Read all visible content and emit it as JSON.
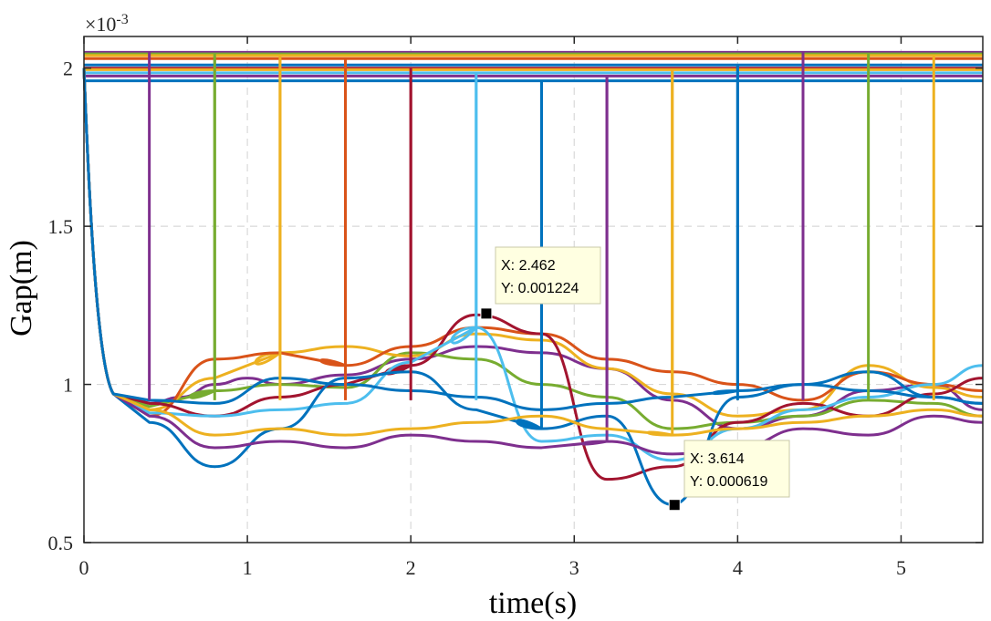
{
  "chart_data": {
    "type": "line",
    "xlabel": "time(s)",
    "ylabel": "Gap(m)",
    "xlim": [
      0,
      5.5
    ],
    "ylim": [
      0.5,
      2.1
    ],
    "y_multiplier_label": "×10",
    "y_multiplier_exponent": "-3",
    "xticks": [
      0,
      1,
      2,
      3,
      4,
      5
    ],
    "xtick_labels": [
      "0",
      "1",
      "2",
      "3",
      "4",
      "5"
    ],
    "yticks": [
      0.5,
      1,
      1.5,
      2
    ],
    "ytick_labels": [
      "0.5",
      "1",
      "1.5",
      "2"
    ],
    "grid": true,
    "legend": "none",
    "series_note_colors": [
      "#0072BD",
      "#D95319",
      "#EDB120",
      "#7E2F8E",
      "#77AC30",
      "#4DBEEE",
      "#A2142F"
    ],
    "series": [
      {
        "color": "#7E2F8E",
        "start": 0.4,
        "level": 2.05,
        "low": [
          [
            0.4,
            0.94
          ],
          [
            0.6,
            0.96
          ],
          [
            0.8,
            1.0
          ],
          [
            1.0,
            1.02
          ],
          [
            1.2,
            1.0
          ],
          [
            1.6,
            1.03
          ],
          [
            2.0,
            1.08
          ],
          [
            2.4,
            1.12
          ],
          [
            2.8,
            1.1
          ],
          [
            3.2,
            1.05
          ],
          [
            3.6,
            0.95
          ],
          [
            4.0,
            0.86
          ],
          [
            4.4,
            0.9
          ],
          [
            4.8,
            0.98
          ],
          [
            5.2,
            1.0
          ],
          [
            5.5,
            0.92
          ]
        ]
      },
      {
        "color": "#77AC30",
        "start": 0.4,
        "level": 2.045,
        "low": [
          [
            0.4,
            0.93
          ],
          [
            0.8,
            0.98
          ],
          [
            1.2,
            1.0
          ],
          [
            1.6,
            0.99
          ],
          [
            2.0,
            1.1
          ],
          [
            2.4,
            1.08
          ],
          [
            2.8,
            1.0
          ],
          [
            3.2,
            0.96
          ],
          [
            3.6,
            0.86
          ],
          [
            4.0,
            0.88
          ],
          [
            4.4,
            0.9
          ],
          [
            4.8,
            0.95
          ],
          [
            5.2,
            0.94
          ],
          [
            5.5,
            0.9
          ]
        ]
      },
      {
        "color": "#EDB120",
        "start": 0.4,
        "level": 2.04,
        "low": [
          [
            0.4,
            0.92
          ],
          [
            0.8,
            1.02
          ],
          [
            1.2,
            1.1
          ],
          [
            1.6,
            1.12
          ],
          [
            2.0,
            1.09
          ],
          [
            2.4,
            1.16
          ],
          [
            2.8,
            1.14
          ],
          [
            3.2,
            1.05
          ],
          [
            3.6,
            0.97
          ],
          [
            4.0,
            0.9
          ],
          [
            4.4,
            0.92
          ],
          [
            4.8,
            1.06
          ],
          [
            5.2,
            0.99
          ],
          [
            5.5,
            0.96
          ]
        ]
      },
      {
        "color": "#D95319",
        "start": 0.4,
        "level": 2.03,
        "low": [
          [
            0.4,
            0.9
          ],
          [
            0.8,
            1.08
          ],
          [
            1.2,
            1.1
          ],
          [
            1.6,
            1.06
          ],
          [
            2.0,
            1.12
          ],
          [
            2.4,
            1.18
          ],
          [
            2.8,
            1.16
          ],
          [
            3.2,
            1.08
          ],
          [
            3.6,
            1.04
          ],
          [
            4.0,
            1.0
          ],
          [
            4.4,
            0.95
          ],
          [
            4.8,
            1.04
          ],
          [
            5.2,
            1.0
          ],
          [
            5.5,
            0.98
          ]
        ]
      },
      {
        "color": "#A2142F",
        "start": 0.4,
        "level": 2.0,
        "low": [
          [
            0.4,
            0.94
          ],
          [
            0.8,
            0.9
          ],
          [
            1.2,
            0.96
          ],
          [
            1.6,
            1.0
          ],
          [
            2.0,
            1.06
          ],
          [
            2.4,
            1.22
          ],
          [
            2.8,
            1.16
          ],
          [
            3.2,
            0.7
          ],
          [
            3.6,
            0.74
          ],
          [
            4.0,
            0.88
          ],
          [
            4.4,
            0.94
          ],
          [
            4.8,
            0.9
          ],
          [
            5.2,
            0.97
          ],
          [
            5.5,
            1.02
          ]
        ]
      },
      {
        "color": "#4DBEEE",
        "start": 0.4,
        "level": 1.985,
        "low": [
          [
            0.4,
            0.91
          ],
          [
            0.8,
            0.9
          ],
          [
            1.2,
            0.92
          ],
          [
            1.6,
            0.94
          ],
          [
            2.0,
            1.07
          ],
          [
            2.4,
            1.18
          ],
          [
            2.8,
            0.82
          ],
          [
            3.2,
            0.84
          ],
          [
            3.6,
            0.76
          ],
          [
            4.0,
            0.86
          ],
          [
            4.4,
            0.92
          ],
          [
            4.8,
            0.96
          ],
          [
            5.2,
            1.0
          ],
          [
            5.5,
            1.06
          ]
        ]
      },
      {
        "color": "#0072BD",
        "start": 0.4,
        "level": 1.96,
        "low": [
          [
            0.4,
            0.88
          ],
          [
            0.8,
            0.74
          ],
          [
            1.2,
            0.86
          ],
          [
            1.6,
            1.02
          ],
          [
            2.0,
            1.04
          ],
          [
            2.4,
            0.92
          ],
          [
            2.8,
            0.86
          ],
          [
            3.2,
            0.9
          ],
          [
            3.6,
            0.62
          ],
          [
            4.0,
            0.96
          ],
          [
            4.4,
            1.0
          ],
          [
            4.8,
            1.04
          ],
          [
            5.2,
            0.96
          ],
          [
            5.5,
            0.94
          ]
        ]
      },
      {
        "color": "#7E2F8E",
        "start": 0.4,
        "level": 1.975,
        "low": [
          [
            0.4,
            0.9
          ],
          [
            0.8,
            0.8
          ],
          [
            1.2,
            0.82
          ],
          [
            1.6,
            0.8
          ],
          [
            2.0,
            0.84
          ],
          [
            2.4,
            0.82
          ],
          [
            2.8,
            0.8
          ],
          [
            3.2,
            0.82
          ],
          [
            3.6,
            0.78
          ],
          [
            4.0,
            0.8
          ],
          [
            4.4,
            0.86
          ],
          [
            4.8,
            0.84
          ],
          [
            5.2,
            0.9
          ],
          [
            5.5,
            0.88
          ]
        ]
      },
      {
        "color": "#EDB120",
        "start": 0.4,
        "level": 1.995,
        "low": [
          [
            0.4,
            0.92
          ],
          [
            0.8,
            0.84
          ],
          [
            1.2,
            0.86
          ],
          [
            1.6,
            0.84
          ],
          [
            2.0,
            0.86
          ],
          [
            2.4,
            0.88
          ],
          [
            2.8,
            0.9
          ],
          [
            3.2,
            0.86
          ],
          [
            3.6,
            0.84
          ],
          [
            4.0,
            0.86
          ],
          [
            4.4,
            0.88
          ],
          [
            4.8,
            0.9
          ],
          [
            5.2,
            0.92
          ],
          [
            5.5,
            0.9
          ]
        ]
      },
      {
        "color": "#0072BD",
        "start": 0.4,
        "level": 2.01,
        "low": [
          [
            0.4,
            0.95
          ],
          [
            0.8,
            0.94
          ],
          [
            1.2,
            1.02
          ],
          [
            1.6,
            1.0
          ],
          [
            2.0,
            0.98
          ],
          [
            2.4,
            0.96
          ],
          [
            2.8,
            0.92
          ],
          [
            3.2,
            0.94
          ],
          [
            3.6,
            0.96
          ],
          [
            4.0,
            0.98
          ],
          [
            4.4,
            1.0
          ],
          [
            4.8,
            0.98
          ],
          [
            5.2,
            0.96
          ],
          [
            5.5,
            0.94
          ]
        ]
      }
    ],
    "step_markers": [
      0.4,
      0.8,
      1.2,
      1.6,
      2.0,
      2.4,
      2.8,
      3.2,
      3.6,
      4.0,
      4.4,
      4.8,
      5.2
    ],
    "annotations": [
      {
        "x": 2.462,
        "y": 1.224,
        "x_label": "X: 2.462",
        "y_label": "Y: 0.001224"
      },
      {
        "x": 3.614,
        "y": 0.619,
        "x_label": "X: 3.614",
        "y_label": "Y: 0.000619"
      }
    ]
  }
}
